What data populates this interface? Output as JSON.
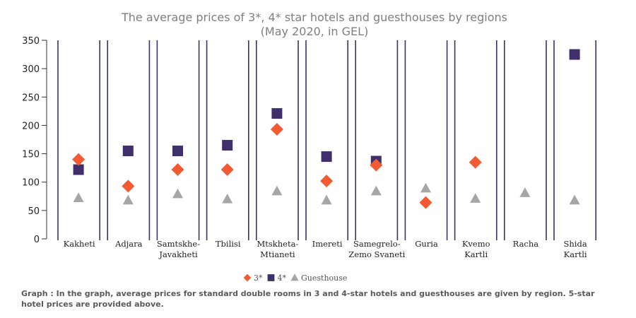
{
  "chart_data": {
    "type": "scatter",
    "title": [
      "The average prices of 3*, 4* star hotels and guesthouses by regions",
      "(May 2020, in GEL)"
    ],
    "categories": [
      [
        "Kakheti"
      ],
      [
        "Adjara"
      ],
      [
        "Samtskhe-",
        "Javakheti"
      ],
      [
        "Tbilisi"
      ],
      [
        "Mtskheta-",
        "Mtianeti"
      ],
      [
        "Imereti"
      ],
      [
        "Samegrelo-",
        "Zemo Svaneti"
      ],
      [
        "Guria"
      ],
      [
        "Kvemo",
        "Kartli"
      ],
      [
        "Racha"
      ],
      [
        "Shida",
        "Kartli"
      ]
    ],
    "ylim": [
      0,
      350
    ],
    "yticks": [
      0,
      50,
      100,
      150,
      200,
      250,
      300,
      350
    ],
    "series": [
      {
        "name": "3*",
        "marker": "diamond",
        "color": "#f15a33",
        "values": [
          140,
          93,
          122,
          122,
          193,
          102,
          130,
          64,
          135,
          null,
          null
        ]
      },
      {
        "name": "4*",
        "marker": "square",
        "color": "#3f2f6b",
        "values": [
          122,
          155,
          155,
          165,
          221,
          145,
          137,
          null,
          null,
          null,
          325
        ]
      },
      {
        "name": "Guesthouse",
        "marker": "triangle",
        "color": "#a6a6a6",
        "values": [
          72,
          68,
          79,
          70,
          84,
          68,
          84,
          89,
          71,
          81,
          68
        ]
      }
    ],
    "legend_position": "bottom-center",
    "grid": false
  },
  "caption": "Graph : In the graph, average prices for standard double rooms in 3 and 4-star hotels and guesthouses are given by region. 5-star hotel prices are provided above."
}
